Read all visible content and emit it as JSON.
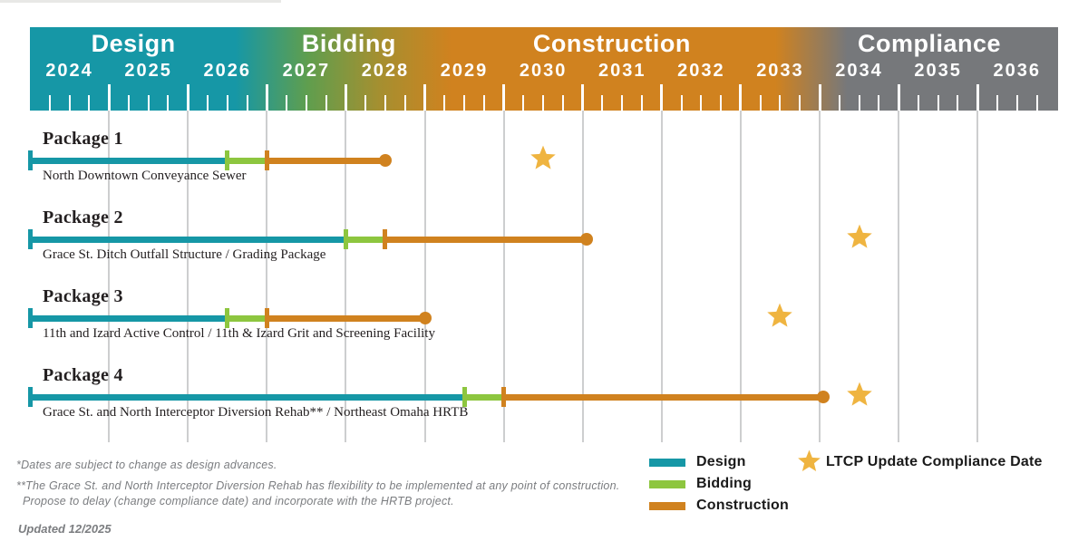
{
  "colors": {
    "design": "#1697a6",
    "bidding": "#8dc63f",
    "construction": "#d0821f",
    "compliance": "#76787b",
    "star": "#efb440",
    "gridline": "#cdcecf",
    "text": "#231f20",
    "footnote": "#7b7d80"
  },
  "chart_data": {
    "type": "gantt",
    "title": "CSO Program Package Schedule",
    "x_axis": {
      "unit": "year",
      "min": 2024,
      "max": 2037,
      "years": [
        2024,
        2025,
        2026,
        2027,
        2028,
        2029,
        2030,
        2031,
        2032,
        2033,
        2034,
        2035,
        2036
      ],
      "minor_ticks": "quarterly",
      "gridlines": "year-boundaries"
    },
    "phase_bands": [
      {
        "label": "Design",
        "center_year": 2025.31,
        "color": "#1697a6"
      },
      {
        "label": "Bidding",
        "center_year": 2028.04,
        "color": "#8dc63f"
      },
      {
        "label": "Construction",
        "center_year": 2031.37,
        "color": "#d0821f"
      },
      {
        "label": "Compliance",
        "center_year": 2035.39,
        "color": "#76787b"
      }
    ],
    "tasks": [
      {
        "name": "Package 1",
        "description": "North Downtown Conveyance Sewer",
        "segments": [
          {
            "phase": "design",
            "start": 2024.0,
            "end": 2026.5
          },
          {
            "phase": "bidding",
            "start": 2026.5,
            "end": 2027.0
          },
          {
            "phase": "construction",
            "start": 2027.0,
            "end": 2028.5
          }
        ],
        "compliance_star_year": 2030.5
      },
      {
        "name": "Package 2",
        "description": "Grace St. Ditch Outfall Structure / Grading Package",
        "segments": [
          {
            "phase": "design",
            "start": 2024.0,
            "end": 2028.0
          },
          {
            "phase": "bidding",
            "start": 2028.0,
            "end": 2028.5
          },
          {
            "phase": "construction",
            "start": 2028.5,
            "end": 2031.05
          }
        ],
        "compliance_star_year": 2034.5
      },
      {
        "name": "Package 3",
        "description": "11th and Izard Active Control / 11th & Izard Grit and Screening Facility",
        "segments": [
          {
            "phase": "design",
            "start": 2024.0,
            "end": 2026.5
          },
          {
            "phase": "bidding",
            "start": 2026.5,
            "end": 2027.0
          },
          {
            "phase": "construction",
            "start": 2027.0,
            "end": 2029.0
          }
        ],
        "compliance_star_year": 2033.5
      },
      {
        "name": "Package 4",
        "description": "Grace St. and North Interceptor Diversion Rehab** / Northeast Omaha HRTB",
        "segments": [
          {
            "phase": "design",
            "start": 2024.0,
            "end": 2029.5
          },
          {
            "phase": "bidding",
            "start": 2029.5,
            "end": 2030.0
          },
          {
            "phase": "construction",
            "start": 2030.0,
            "end": 2034.05
          }
        ],
        "compliance_star_year": 2034.5
      }
    ]
  },
  "legend": {
    "items": [
      {
        "label": "Design",
        "color": "#1697a6"
      },
      {
        "label": "Bidding",
        "color": "#8dc63f"
      },
      {
        "label": "Construction",
        "color": "#d0821f"
      }
    ],
    "star_label": "LTCP Update Compliance Date"
  },
  "footnotes": [
    "*Dates are subject to change as design advances.",
    "**The Grace St. and North Interceptor Diversion Rehab  has flexibility to be implemented at any point of construction.",
    "Propose to delay (change compliance date) and incorporate with the HRTB project."
  ],
  "meta": {
    "updated": "Updated 12/2025"
  }
}
